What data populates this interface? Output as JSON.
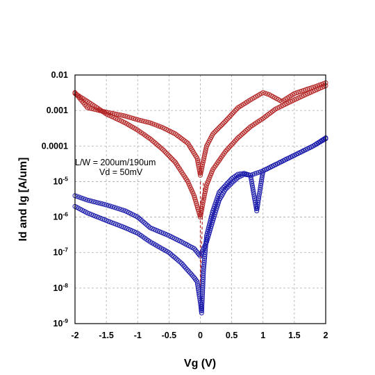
{
  "chart_data": {
    "type": "scatter",
    "xlabel": "Vg (V)",
    "ylabel": "Id and Ig [A/um]",
    "xlim": [
      -2,
      2
    ],
    "ylim": [
      1e-09,
      0.01
    ],
    "yscale": "log",
    "grid": true,
    "x_ticks": [
      "-2",
      "-1.5",
      "-1",
      "-0.5",
      "0",
      "0.5",
      "1",
      "1.5",
      "2"
    ],
    "y_ticks": [
      {
        "mantissa": "10",
        "exp": "-9"
      },
      {
        "mantissa": "10",
        "exp": "-8"
      },
      {
        "mantissa": "10",
        "exp": "-7"
      },
      {
        "mantissa": "10",
        "exp": "-6"
      },
      {
        "mantissa": "10",
        "exp": "-5"
      },
      {
        "mantissa": "0.0001",
        "exp": ""
      },
      {
        "mantissa": "0.001",
        "exp": ""
      },
      {
        "mantissa": "0.01",
        "exp": ""
      }
    ],
    "annotations": [
      "L/W = 200um/190um",
      "Vd = 50mV"
    ],
    "series": [
      {
        "color": "#b22222",
        "marker": "open-circle",
        "x": [
          -2,
          -1.8,
          -1.5,
          -1.2,
          -1.0,
          -0.8,
          -0.6,
          -0.4,
          -0.2,
          -0.1,
          0,
          0.05,
          0.1,
          0.2,
          0.4,
          0.6,
          0.8,
          1.0,
          1.2,
          1.5,
          1.8,
          2.0
        ],
        "y": [
          0.003,
          0.0018,
          0.0008,
          0.00045,
          0.00028,
          0.00016,
          8e-05,
          3.5e-05,
          1e-05,
          4e-06,
          1e-06,
          3e-06,
          8e-06,
          2.2e-05,
          7e-05,
          0.00017,
          0.00035,
          0.0006,
          0.0011,
          0.002,
          0.0035,
          0.005
        ]
      },
      {
        "color": "#b22222",
        "marker": "open-circle",
        "x": [
          -2,
          -1.8,
          -1.5,
          -1.2,
          -1.0,
          -0.8,
          -0.6,
          -0.4,
          -0.2,
          -0.05,
          0,
          0.05,
          0.1,
          0.2,
          0.4,
          0.6,
          0.8,
          1.0,
          1.1,
          1.3,
          1.5,
          1.8,
          2.0
        ],
        "y": [
          0.0032,
          0.0012,
          0.0009,
          0.0007,
          0.00055,
          0.00045,
          0.00033,
          0.00022,
          0.00012,
          4.5e-05,
          1.5e-05,
          4e-05,
          0.0001,
          0.00022,
          0.0005,
          0.0012,
          0.002,
          0.0032,
          0.0028,
          0.0018,
          0.003,
          0.0045,
          0.006
        ]
      },
      {
        "color": "#b22222",
        "marker": "dash-line",
        "x": [
          0,
          0,
          0.05
        ],
        "y": [
          1e-05,
          1e-08,
          1e-05
        ]
      },
      {
        "color": "#1a1aaa",
        "marker": "open-circle",
        "x": [
          -2,
          -1.8,
          -1.5,
          -1.2,
          -1.0,
          -0.8,
          -0.5,
          -0.3,
          -0.1,
          0,
          0.1,
          0.2,
          0.3,
          0.4,
          0.5,
          0.6,
          0.7,
          0.8,
          0.9,
          1.0,
          1.2,
          1.5,
          1.8,
          2.0
        ],
        "y": [
          4e-06,
          3e-06,
          2.2e-06,
          1.5e-06,
          1e-06,
          5e-07,
          3e-07,
          2e-07,
          1.3e-07,
          8e-08,
          2e-07,
          8e-07,
          3e-06,
          6e-06,
          9e-06,
          1.3e-05,
          1.6e-05,
          1.5e-05,
          1.5e-06,
          2e-05,
          3e-05,
          5.5e-05,
          0.0001,
          0.00016
        ]
      },
      {
        "color": "#1a1aaa",
        "marker": "open-circle",
        "x": [
          -2,
          -1.8,
          -1.5,
          -1.2,
          -1.0,
          -0.8,
          -0.5,
          -0.3,
          -0.1,
          -0.05,
          0.0,
          0.02,
          0.05,
          0.1,
          0.2,
          0.3,
          0.5,
          0.6,
          0.7,
          0.8,
          1.0,
          1.2,
          1.5,
          1.8,
          2.0
        ],
        "y": [
          2e-06,
          1.3e-06,
          8e-07,
          5e-07,
          3.5e-07,
          2e-07,
          1e-07,
          5e-08,
          2e-08,
          1.5e-08,
          4e-09,
          2e-09,
          3e-08,
          3e-07,
          1.5e-06,
          5e-06,
          1.2e-05,
          1.6e-05,
          1.7e-05,
          1.5e-05,
          2e-05,
          3e-05,
          5.5e-05,
          0.0001,
          0.00017
        ]
      }
    ]
  }
}
